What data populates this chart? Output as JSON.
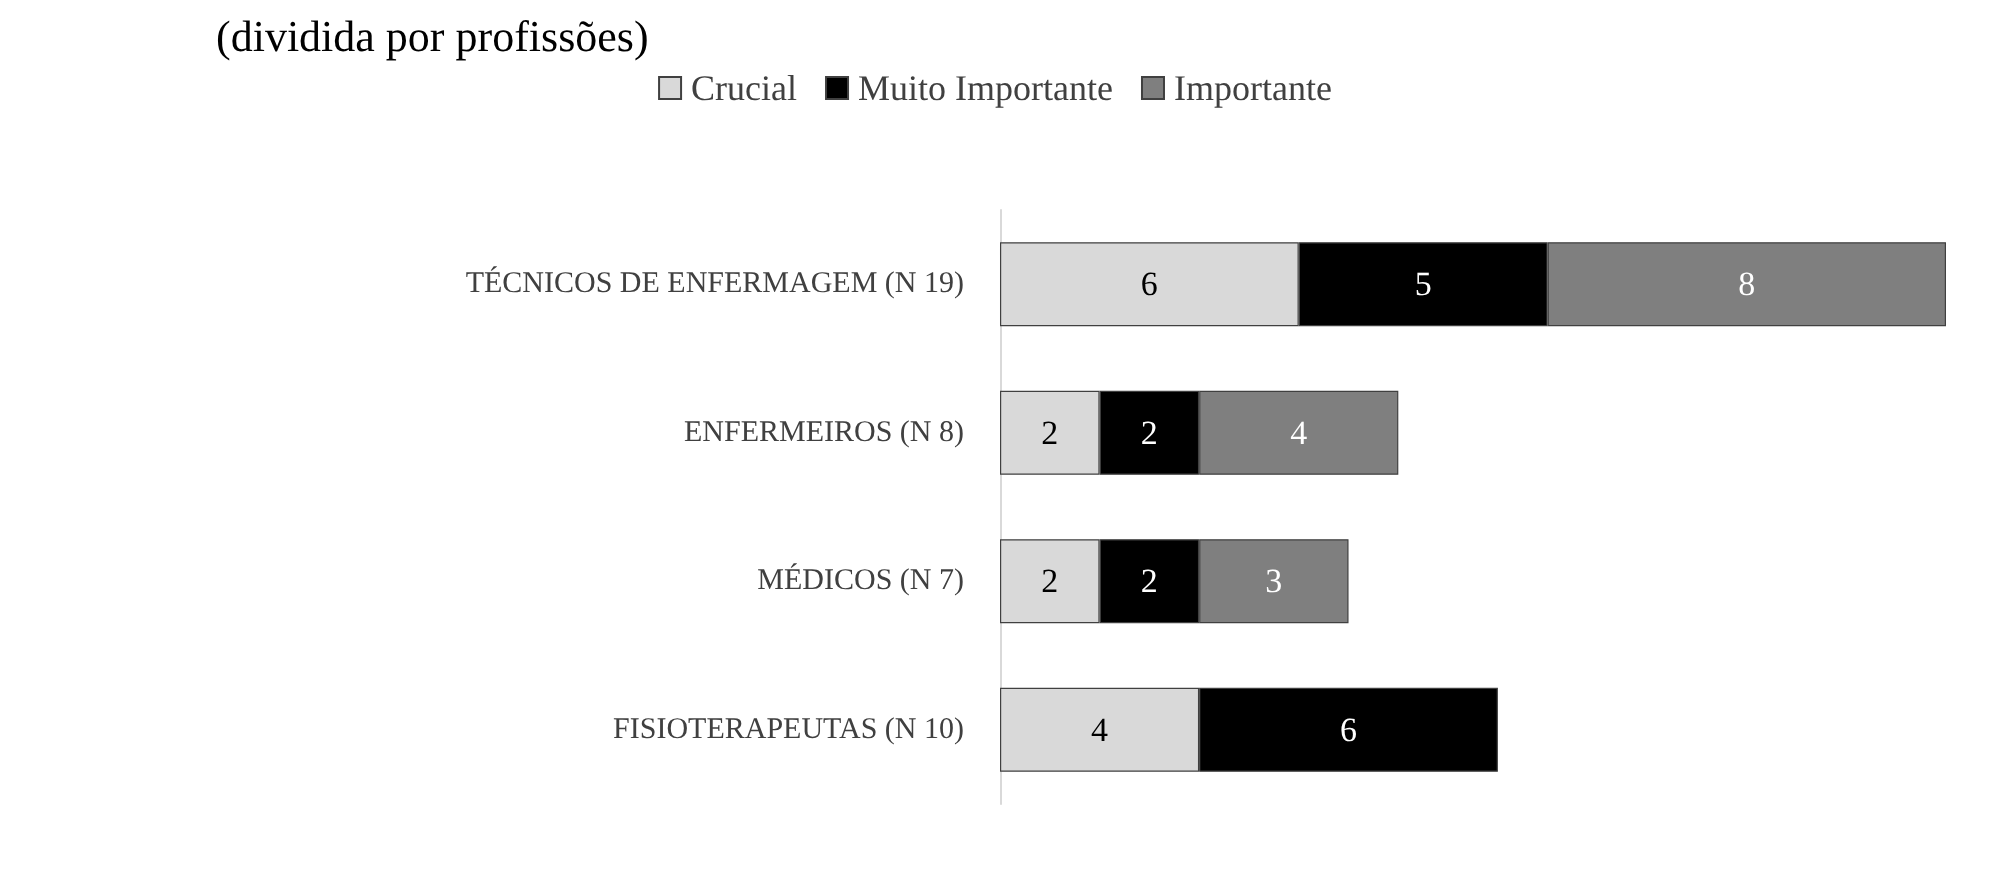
{
  "chart_data": {
    "type": "bar",
    "title": "(dividida por profissões)",
    "orientation": "horizontal",
    "stacked": true,
    "data_labels": true,
    "legend": "top",
    "categories": [
      "TÉCNICOS DE ENFERMAGEM (N 19)",
      "ENFERMEIROS (N 8)",
      "MÉDICOS (N 7)",
      "FISIOTERAPEUTAS (N 10)"
    ],
    "series": [
      {
        "name": "Crucial",
        "color": "#d9d9d9",
        "values": [
          6,
          2,
          2,
          4
        ]
      },
      {
        "name": "Muito Importante",
        "color": "#000000",
        "values": [
          5,
          2,
          2,
          6
        ]
      },
      {
        "name": "Importante",
        "color": "#7f7f7f",
        "values": [
          8,
          4,
          3,
          null
        ]
      }
    ]
  }
}
